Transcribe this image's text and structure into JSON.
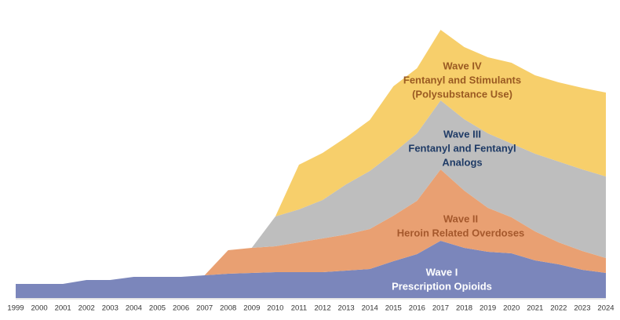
{
  "chart_data": {
    "type": "stacked-area",
    "categories": [
      "1999",
      "2000",
      "2001",
      "2002",
      "2003",
      "2004",
      "2005",
      "2006",
      "2007",
      "2008",
      "2009",
      "2010",
      "2011",
      "2012",
      "2013",
      "2014",
      "2015",
      "2016",
      "2017",
      "2018",
      "2019",
      "2020",
      "2021",
      "2022",
      "2023",
      "2024"
    ],
    "ylim": [
      0,
      350
    ],
    "series": [
      {
        "name": "Wave I",
        "description": [
          "Prescription Opioids"
        ],
        "color": "#7b86bb",
        "label_color": "#ffffff",
        "values": [
          18,
          18,
          18,
          23,
          23,
          27,
          27,
          27,
          29,
          31,
          32,
          33,
          33,
          33,
          35,
          37,
          47,
          56,
          73,
          64,
          59,
          57,
          48,
          43,
          36,
          32
        ]
      },
      {
        "name": "Wave II",
        "description": [
          "Heroin Related Overdoses"
        ],
        "color": "#e9a072",
        "label_color": "#a5582c",
        "values": [
          0,
          0,
          0,
          0,
          0,
          0,
          0,
          0,
          0,
          30,
          32,
          33,
          38,
          43,
          46,
          51,
          58,
          68,
          91,
          73,
          56,
          46,
          37,
          28,
          24,
          19
        ]
      },
      {
        "name": "Wave III",
        "description": [
          "Fentanyl and Fentanyl",
          "Analogs"
        ],
        "color": "#bebebe",
        "label_color": "#1f3b66",
        "values": [
          0,
          0,
          0,
          0,
          0,
          0,
          0,
          0,
          0,
          0,
          0,
          38,
          42,
          49,
          64,
          74,
          80,
          86,
          88,
          91,
          95,
          94,
          99,
          103,
          104,
          104
        ]
      },
      {
        "name": "Wave IV",
        "description": [
          "Fentanyl and Stimulants",
          "(Polysubstance Use)"
        ],
        "color": "#f7cf6b",
        "label_color": "#9a5a22",
        "values": [
          0,
          0,
          0,
          0,
          0,
          0,
          0,
          0,
          0,
          0,
          0,
          0,
          57,
          60,
          60,
          65,
          85,
          83,
          90,
          92,
          97,
          103,
          100,
          101,
          104,
          107
        ]
      }
    ]
  }
}
